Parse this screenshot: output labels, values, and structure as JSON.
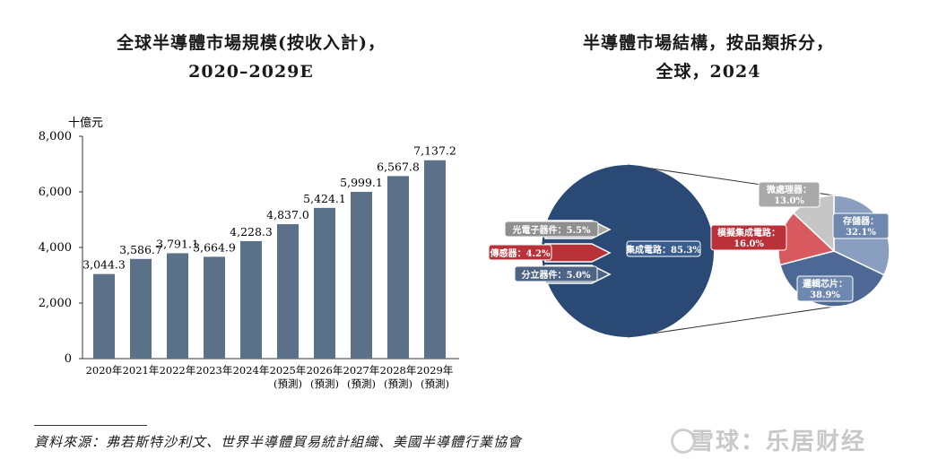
{
  "left_chart": {
    "title_line1": "全球半導體市場規模(按收入計)，",
    "title_line2": "2020–2029E",
    "unit": "十億元",
    "y_ticks": [
      "8,000",
      "6,000",
      "4,000",
      "2,000",
      "0"
    ]
  },
  "right_chart": {
    "title_line1": "半導體市場結構，按品類拆分，",
    "title_line2": "全球，2024"
  },
  "source": "資料來源：弗若斯特沙利文、世界半導體貿易統計組織、美國半導體行業協會",
  "watermark": "雪球：乐居财经",
  "colors": {
    "bar": "#5b7089",
    "pie_main": "#2a4a75",
    "opto": "#a7a7a7",
    "sensor": "#b9323a",
    "discrete": "#4d6484",
    "sub_memory": "#8a9fbf",
    "sub_logic": "#4d6895",
    "sub_analog": "#d85a5f",
    "sub_micro": "#c6c6c6"
  },
  "chart_data": [
    {
      "type": "bar",
      "title": "全球半導體市場規模(按收入計)，2020–2029E",
      "ylabel": "十億元",
      "ylim": [
        0,
        8000
      ],
      "categories": [
        "2020年",
        "2021年",
        "2022年",
        "2023年",
        "2024年",
        "2025年(預測)",
        "2026年(預測)",
        "2027年(預測)",
        "2028年(預測)",
        "2029年(預測)"
      ],
      "category_lines": [
        [
          "2020年",
          ""
        ],
        [
          "2021年",
          ""
        ],
        [
          "2022年",
          ""
        ],
        [
          "2023年",
          ""
        ],
        [
          "2024年",
          ""
        ],
        [
          "2025年",
          "(預測)"
        ],
        [
          "2026年",
          "(預測)"
        ],
        [
          "2027年",
          "(預測)"
        ],
        [
          "2028年",
          "(預測)"
        ],
        [
          "2029年",
          "(預測)"
        ]
      ],
      "values": [
        3044.3,
        3586.7,
        3791.1,
        3664.9,
        4228.3,
        4837.0,
        5424.1,
        5999.1,
        6567.8,
        7137.2
      ],
      "value_labels": [
        "3,044.3",
        "3,586.7",
        "3,791.1",
        "3,664.9",
        "4,228.3",
        "4,837.0",
        "5,424.1",
        "5,999.1",
        "6,567.8",
        "7,137.2"
      ]
    },
    {
      "type": "pie",
      "title": "半導體市場結構，按品類拆分，全球，2024",
      "slices": [
        {
          "label": "集成電路：85.3%",
          "value": 85.3
        },
        {
          "label": "光電子器件：5.5%",
          "value": 5.5
        },
        {
          "label": "傳感器：4.2%",
          "value": 4.2
        },
        {
          "label": "分立器件：5.0%",
          "value": 5.0
        }
      ],
      "breakdown_of": "集成電路",
      "sub_slices": [
        {
          "label_line1": "存儲器：",
          "label_line2": "32.1%",
          "value": 32.1
        },
        {
          "label_line1": "邏輯芯片：",
          "label_line2": "38.9%",
          "value": 38.9
        },
        {
          "label_line1": "模擬集成電路：",
          "label_line2": "16.0%",
          "value": 16.0
        },
        {
          "label_line1": "微處理器：",
          "label_line2": "13.0%",
          "value": 13.0
        }
      ]
    }
  ]
}
